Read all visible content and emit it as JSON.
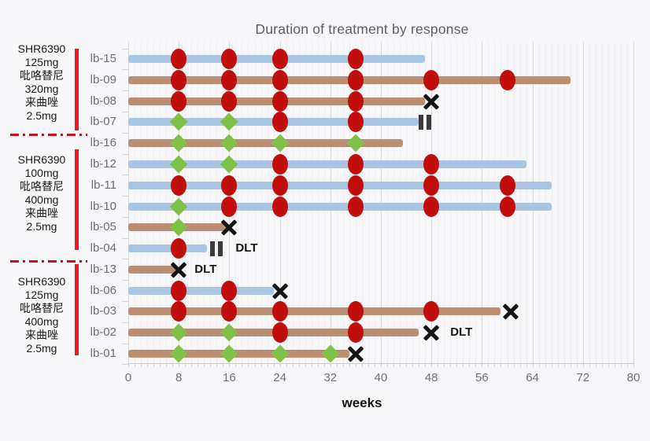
{
  "chart_data": {
    "type": "bar",
    "subtype": "swimmer-plot",
    "title": "Duration of treatment by response",
    "xlabel": "weeks",
    "xlim": [
      0,
      80
    ],
    "xticks": [
      0,
      8,
      16,
      24,
      32,
      40,
      48,
      56,
      64,
      72,
      80
    ],
    "grid": {
      "minor_every_weeks": 1,
      "major_every_weeks": 8
    },
    "marker_shapes": [
      "red-circle",
      "green-diamond",
      "x-mark",
      "pause-mark"
    ],
    "groups": [
      {
        "label_lines": [
          "SHR6390",
          "125mg",
          "吡咯替尼",
          "320mg",
          "来曲唑",
          "2.5mg"
        ],
        "patients": [
          "lb-15",
          "lb-09",
          "lb-08",
          "lb-07"
        ]
      },
      {
        "label_lines": [
          "SHR6390",
          "100mg",
          "吡咯替尼",
          "400mg",
          "来曲唑",
          "2.5mg"
        ],
        "patients": [
          "lb-16",
          "lb-12",
          "lb-11",
          "lb-10",
          "lb-05",
          "lb-04"
        ]
      },
      {
        "label_lines": [
          "SHR6390",
          "125mg",
          "吡咯替尼",
          "400mg",
          "来曲唑",
          "2.5mg"
        ],
        "patients": [
          "lb-13",
          "lb-06",
          "lb-03",
          "lb-02",
          "lb-01"
        ]
      }
    ],
    "bars": [
      {
        "id": "lb-15",
        "color": "blue",
        "duration_weeks": 47,
        "circles": [
          8,
          16,
          24,
          36
        ],
        "diamonds": [],
        "x_mark": null,
        "pause": null,
        "dlt_at": null
      },
      {
        "id": "lb-09",
        "color": "brown",
        "duration_weeks": 70,
        "circles": [
          8,
          16,
          24,
          36,
          48,
          60
        ],
        "diamonds": [],
        "x_mark": null,
        "pause": null,
        "dlt_at": null
      },
      {
        "id": "lb-08",
        "color": "brown",
        "duration_weeks": 47,
        "circles": [
          8,
          16,
          24,
          36
        ],
        "diamonds": [],
        "x_mark": 48,
        "pause": null,
        "dlt_at": null
      },
      {
        "id": "lb-07",
        "color": "blue",
        "duration_weeks": 46,
        "circles": [
          24,
          36
        ],
        "diamonds": [
          8,
          16
        ],
        "x_mark": null,
        "pause": 47,
        "dlt_at": null
      },
      {
        "id": "lb-16",
        "color": "brown",
        "duration_weeks": 43.5,
        "circles": [],
        "diamonds": [
          8,
          16,
          24,
          36
        ],
        "x_mark": null,
        "pause": null,
        "dlt_at": null
      },
      {
        "id": "lb-12",
        "color": "blue",
        "duration_weeks": 63,
        "circles": [
          24,
          36,
          48
        ],
        "diamonds": [
          8,
          16
        ],
        "x_mark": null,
        "pause": null,
        "dlt_at": null
      },
      {
        "id": "lb-11",
        "color": "blue",
        "duration_weeks": 67,
        "circles": [
          8,
          16,
          24,
          36,
          48,
          60
        ],
        "diamonds": [],
        "x_mark": null,
        "pause": null,
        "dlt_at": null
      },
      {
        "id": "lb-10",
        "color": "blue",
        "duration_weeks": 67,
        "circles": [
          16,
          24,
          36,
          48,
          60
        ],
        "diamonds": [
          8
        ],
        "x_mark": null,
        "pause": null,
        "dlt_at": null
      },
      {
        "id": "lb-05",
        "color": "brown",
        "duration_weeks": 16,
        "circles": [],
        "diamonds": [
          8
        ],
        "x_mark": 16,
        "pause": null,
        "dlt_at": null
      },
      {
        "id": "lb-04",
        "color": "blue",
        "duration_weeks": 12.5,
        "circles": [
          8
        ],
        "diamonds": [],
        "x_mark": null,
        "pause": 14,
        "dlt_at": 17
      },
      {
        "id": "lb-13",
        "color": "brown",
        "duration_weeks": 7.5,
        "circles": [],
        "diamonds": [],
        "x_mark": 8,
        "pause": null,
        "dlt_at": 10.5
      },
      {
        "id": "lb-06",
        "color": "blue",
        "duration_weeks": 23,
        "circles": [
          8,
          16
        ],
        "diamonds": [],
        "x_mark": 24,
        "pause": null,
        "dlt_at": null
      },
      {
        "id": "lb-03",
        "color": "brown",
        "duration_weeks": 59,
        "circles": [
          8,
          16,
          24,
          36,
          48
        ],
        "diamonds": [],
        "x_mark": 60.5,
        "pause": null,
        "dlt_at": null
      },
      {
        "id": "lb-02",
        "color": "brown",
        "duration_weeks": 46,
        "circles": [
          24,
          36
        ],
        "diamonds": [
          8,
          16
        ],
        "x_mark": 48,
        "pause": null,
        "dlt_at": 51
      },
      {
        "id": "lb-01",
        "color": "brown",
        "duration_weeks": 35,
        "circles": [],
        "diamonds": [
          8,
          16,
          24,
          32
        ],
        "x_mark": 36,
        "pause": null,
        "dlt_at": null
      }
    ],
    "dlt_label_text": "DLT",
    "colors": {
      "bar_blue": "#a9c5e2",
      "bar_brown": "#b98e72",
      "circle_red": "#c20d0d",
      "diamond_green": "#7dc246",
      "x_black": "#141414",
      "pause_gray": "#3b3b3b",
      "group_bar_red": "#ec1c24",
      "separator_red": "#c8101c"
    }
  }
}
